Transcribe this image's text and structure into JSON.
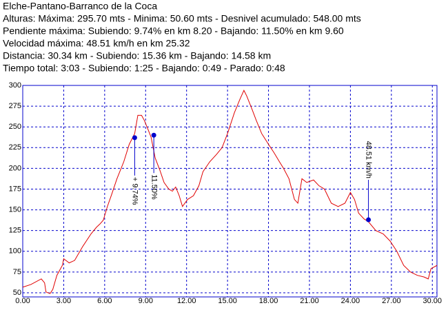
{
  "chart_data": {
    "type": "line",
    "title": "Elche-Pantano-Barranco de la Coca",
    "info": [
      "Alturas: Máxima: 295.70 mts - Minima: 50.60 mts - Desnivel acumulado: 548.00 mts",
      "Pendiente máxima: Subiendo: 9.74% en km 8.20 - Bajando: 11.50% en km 9.60",
      "Velocidad máxima: 48.51 km/h en km 25.32",
      "Distancia: 30.34 km - Subiendo: 15.36 km - Bajando: 14.58 km",
      "Tiempo total: 3:03 - Subiendo: 1:25 - Bajando: 0:49 - Parado: 0:48"
    ],
    "x": [
      0,
      0.6,
      1.36,
      1.6,
      1.7,
      2.0,
      2.2,
      2.5,
      2.9,
      3.0,
      3.4,
      3.8,
      4.4,
      5.0,
      5.4,
      5.66,
      5.9,
      6.2,
      6.5,
      6.9,
      7.4,
      7.8,
      8.2,
      8.43,
      8.7,
      8.9,
      9.2,
      9.4,
      9.7,
      10.05,
      10.35,
      10.7,
      10.96,
      11.2,
      11.46,
      11.7,
      12.07,
      12.5,
      12.9,
      13.2,
      13.7,
      14.2,
      14.6,
      15.0,
      15.5,
      15.9,
      16.2,
      16.4,
      16.8,
      17.1,
      17.5,
      18.0,
      18.4,
      18.8,
      19.1,
      19.5,
      19.9,
      20.15,
      20.45,
      20.8,
      21.3,
      21.7,
      22.1,
      22.6,
      23.1,
      23.6,
      24.0,
      24.3,
      24.6,
      25.0,
      25.3,
      25.86,
      26.4,
      26.9,
      27.4,
      27.9,
      28.4,
      28.9,
      29.4,
      29.7,
      29.9,
      30.34
    ],
    "series": [
      {
        "color": "#e00000",
        "values": [
          56.7,
          60,
          66.7,
          62,
          51,
          49,
          54,
          71,
          83,
          91,
          86,
          89,
          106,
          121,
          129,
          133,
          137.5,
          154,
          168,
          187.5,
          208,
          229,
          242,
          264,
          264,
          258,
          246,
          237.5,
          212.5,
          197.5,
          183,
          175,
          172.5,
          177.5,
          167,
          154,
          162.5,
          167,
          179,
          196,
          208,
          217,
          225,
          242,
          267,
          283,
          294,
          287.5,
          271,
          258,
          242,
          229,
          219,
          208,
          200,
          187.5,
          162.5,
          158,
          187.5,
          183,
          186,
          179,
          175,
          158,
          154,
          158,
          171,
          162.5,
          146,
          139,
          136,
          125,
          121,
          112.5,
          100,
          83,
          75,
          71,
          69,
          66.7,
          79,
          83
        ]
      }
    ],
    "annotations": [
      {
        "x": 8.2,
        "y": 237,
        "text": "+ 9.74%",
        "dir": "down"
      },
      {
        "x": 9.6,
        "y": 240,
        "text": "11.50%",
        "dir": "down"
      },
      {
        "x": 25.32,
        "y": 138,
        "text": "48.51 km/h",
        "dir": "up"
      }
    ],
    "annotation_color": "#0000cc",
    "xlim": [
      0,
      30.34
    ],
    "ylim": [
      45,
      300
    ],
    "xticks": [
      {
        "value": 0,
        "label": "0.00"
      },
      {
        "value": 3,
        "label": "3.00"
      },
      {
        "value": 6,
        "label": "6.00"
      },
      {
        "value": 9,
        "label": "9.00"
      },
      {
        "value": 12,
        "label": "12.00"
      },
      {
        "value": 15,
        "label": "15.00"
      },
      {
        "value": 18,
        "label": "18.00"
      },
      {
        "value": 21,
        "label": "21.00"
      },
      {
        "value": 24,
        "label": "24.00"
      },
      {
        "value": 27,
        "label": "27.00"
      },
      {
        "value": 30,
        "label": "30.00"
      }
    ],
    "yticks": [
      50,
      75,
      100,
      125,
      150,
      175,
      200,
      225,
      250,
      275,
      300
    ],
    "grid": true,
    "grid_color": "#0000cc"
  }
}
